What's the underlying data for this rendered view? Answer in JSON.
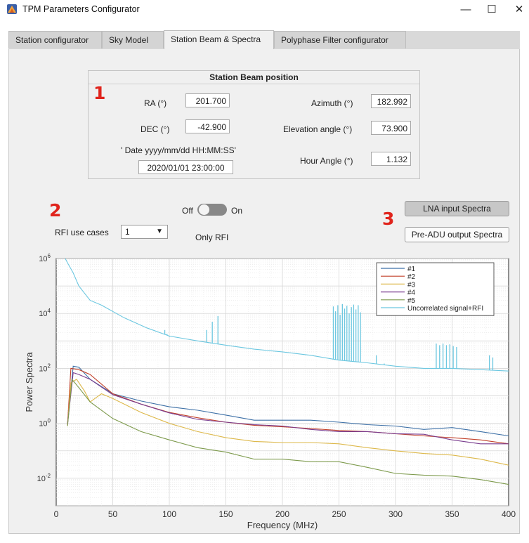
{
  "window": {
    "title": "TPM Parameters Configurator",
    "controls": [
      "—",
      "☐",
      "✕"
    ]
  },
  "tabs": [
    {
      "label": "Station configurator",
      "active": false
    },
    {
      "label": "Sky Model",
      "active": false
    },
    {
      "label": "Station Beam & Spectra",
      "active": true
    },
    {
      "label": "Polyphase Filter configurator",
      "active": false
    }
  ],
  "beam": {
    "title": "Station Beam position",
    "ra_label": "RA (°)",
    "ra_value": "201.700",
    "dec_label": "DEC (°)",
    "dec_value": "-42.900",
    "date_label": "' Date  yyyy/mm/dd HH:MM:SS'",
    "date_value": "2020/01/01 23:00:00",
    "az_label": "Azimuth (°)",
    "az_value": "182.992",
    "el_label": "Elevation angle (°)",
    "el_value": "73.900",
    "ha_label": "Hour Angle (°)",
    "ha_value": "1.132"
  },
  "annotations": [
    "1",
    "2",
    "3"
  ],
  "rfi": {
    "label": "RFI use cases",
    "selected": "1",
    "toggle_off": "Off",
    "toggle_on": "On",
    "toggle_state": "off",
    "only_rfi": "Only RFI"
  },
  "buttons": {
    "lna": "LNA input Spectra",
    "adu": "Pre-ADU output Spectra"
  },
  "colors": {
    "s1": "#3c6fa6",
    "s2": "#c2412a",
    "s3": "#ddb84a",
    "s4": "#7a3d8f",
    "s5": "#7d9a4c",
    "s6": "#6cc7e0",
    "annotation": "#e0241c"
  },
  "chart_data": {
    "type": "line",
    "xlabel": "Frequency (MHz)",
    "ylabel": "Power Spectra",
    "xlim": [
      0,
      400
    ],
    "ylim": [
      0.001,
      1000000
    ],
    "yscale": "log",
    "grid": true,
    "legend_position": "top-right",
    "x_ticks": [
      "0",
      "50",
      "100",
      "150",
      "200",
      "250",
      "300",
      "350",
      "400"
    ],
    "y_ticks": [
      "10^-2",
      "10^0",
      "10^2",
      "10^4",
      "10^6"
    ],
    "series": [
      {
        "name": "#1",
        "color": "#3c6fa6",
        "x": [
          10,
          15,
          20,
          30,
          50,
          75,
          100,
          125,
          150,
          175,
          200,
          225,
          250,
          275,
          300,
          325,
          350,
          375,
          400
        ],
        "y": [
          1.0,
          120,
          110,
          40,
          12,
          6.5,
          4.0,
          3.0,
          2.0,
          1.3,
          1.3,
          1.3,
          1.1,
          0.9,
          0.8,
          0.6,
          0.7,
          0.5,
          0.35
        ]
      },
      {
        "name": "#2",
        "color": "#c2412a",
        "x": [
          10,
          13,
          20,
          30,
          50,
          75,
          100,
          125,
          150,
          175,
          200,
          225,
          250,
          275,
          300,
          325,
          350,
          375,
          400
        ],
        "y": [
          0.9,
          100,
          90,
          60,
          12,
          5.0,
          2.5,
          1.6,
          1.1,
          0.85,
          0.75,
          0.65,
          0.55,
          0.5,
          0.42,
          0.35,
          0.3,
          0.25,
          0.18
        ]
      },
      {
        "name": "#3",
        "color": "#ddb84a",
        "x": [
          10,
          13,
          18,
          25,
          30,
          40,
          50,
          75,
          100,
          125,
          150,
          175,
          200,
          225,
          250,
          275,
          300,
          325,
          350,
          375,
          400
        ],
        "y": [
          0.8,
          30,
          40,
          15,
          6,
          12,
          8,
          2.5,
          1.0,
          0.5,
          0.3,
          0.22,
          0.2,
          0.2,
          0.18,
          0.13,
          0.1,
          0.08,
          0.07,
          0.05,
          0.03
        ]
      },
      {
        "name": "#4",
        "color": "#7a3d8f",
        "x": [
          10,
          15,
          20,
          30,
          50,
          75,
          100,
          125,
          150,
          175,
          200,
          225,
          250,
          275,
          300,
          325,
          350,
          375,
          400
        ],
        "y": [
          0.9,
          70,
          60,
          40,
          11,
          5.0,
          2.4,
          1.4,
          1.1,
          0.9,
          0.8,
          0.6,
          0.5,
          0.5,
          0.42,
          0.4,
          0.25,
          0.18,
          0.18
        ]
      },
      {
        "name": "#5",
        "color": "#7d9a4c",
        "x": [
          10,
          14,
          20,
          30,
          50,
          75,
          100,
          125,
          150,
          175,
          200,
          225,
          250,
          275,
          300,
          325,
          350,
          375,
          400
        ],
        "y": [
          0.8,
          40,
          20,
          6,
          1.5,
          0.5,
          0.25,
          0.13,
          0.09,
          0.05,
          0.05,
          0.04,
          0.04,
          0.025,
          0.015,
          0.013,
          0.012,
          0.009,
          0.006
        ]
      },
      {
        "name": "Uncorrelated signal+RFI",
        "color": "#6cc7e0",
        "x": [
          8,
          10,
          15,
          20,
          30,
          40,
          60,
          80,
          100,
          125,
          150,
          175,
          200,
          225,
          250,
          275,
          300,
          325,
          350,
          375,
          400
        ],
        "y": [
          1000000,
          700000,
          300000,
          100000,
          30000,
          20000,
          7000,
          3000,
          1500,
          1000,
          700,
          500,
          400,
          300,
          200,
          160,
          120,
          100,
          100,
          90,
          80
        ]
      }
    ],
    "rfi_spikes": [
      {
        "f": 96,
        "peak": 2500
      },
      {
        "f": 98,
        "peak": 1800
      },
      {
        "f": 100,
        "peak": 1400
      },
      {
        "f": 133,
        "peak": 2500
      },
      {
        "f": 138,
        "peak": 5000
      },
      {
        "f": 143,
        "peak": 8000
      },
      {
        "f": 245,
        "peak": 18000
      },
      {
        "f": 247,
        "peak": 12000
      },
      {
        "f": 249,
        "peak": 20000
      },
      {
        "f": 251,
        "peak": 9000
      },
      {
        "f": 253,
        "peak": 22000
      },
      {
        "f": 255,
        "peak": 15000
      },
      {
        "f": 257,
        "peak": 19000
      },
      {
        "f": 259,
        "peak": 10000
      },
      {
        "f": 261,
        "peak": 17000
      },
      {
        "f": 263,
        "peak": 21000
      },
      {
        "f": 265,
        "peak": 14000
      },
      {
        "f": 267,
        "peak": 20000
      },
      {
        "f": 269,
        "peak": 11000
      },
      {
        "f": 283,
        "peak": 300
      },
      {
        "f": 290,
        "peak": 150
      },
      {
        "f": 336,
        "peak": 800
      },
      {
        "f": 339,
        "peak": 700
      },
      {
        "f": 342,
        "peak": 800
      },
      {
        "f": 345,
        "peak": 700
      },
      {
        "f": 348,
        "peak": 750
      },
      {
        "f": 351,
        "peak": 650
      },
      {
        "f": 354,
        "peak": 600
      },
      {
        "f": 383,
        "peak": 300
      },
      {
        "f": 386,
        "peak": 250
      }
    ]
  }
}
